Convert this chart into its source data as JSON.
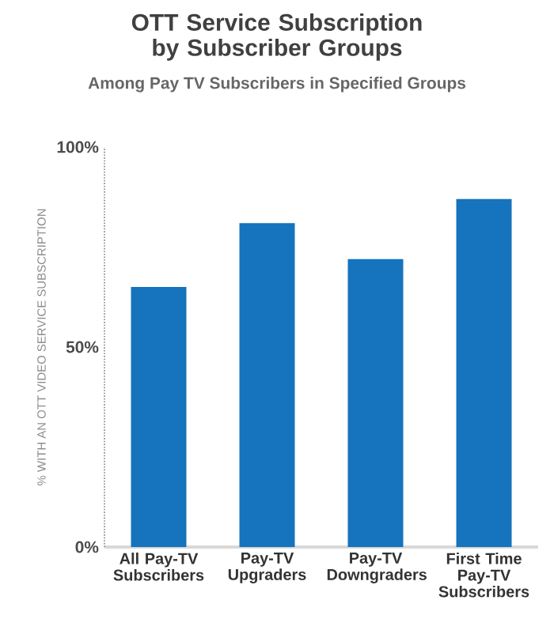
{
  "chart_data": {
    "type": "bar",
    "title": "OTT Service Subscription by Subscriber Groups",
    "subtitle": "Among Pay TV Subscribers in Specified Groups",
    "ylabel": "% WITH AN OTT VIDEO SERVICE SUBSCRIPTION",
    "categories": [
      "All Pay-TV Subscribers",
      "Pay-TV Upgraders",
      "Pay-TV Downgraders",
      "First Time Pay-TV Subscribers"
    ],
    "values": [
      65,
      81,
      72,
      87
    ],
    "color": "#1673bd",
    "ylim": [
      0,
      100
    ],
    "yticks": [
      {
        "value": 0,
        "label": "0%"
      },
      {
        "value": 50,
        "label": "50%"
      },
      {
        "value": 100,
        "label": "100%"
      }
    ],
    "grid": false
  }
}
